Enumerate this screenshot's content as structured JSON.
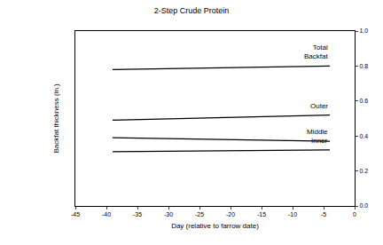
{
  "chart_data": {
    "type": "line",
    "title": "2-Step Crude Protein",
    "x_label": "Day (relative to farrow date)",
    "y_label": "Backfat thickness (in.)",
    "series": [
      {
        "name": "Total Backfat",
        "color": "#000000",
        "x": [
          -39,
          -4
        ],
        "values": [
          0.78,
          0.8
        ]
      },
      {
        "name": "Outer",
        "color": "#000000",
        "x": [
          -39,
          -4
        ],
        "values": [
          0.49,
          0.52
        ]
      },
      {
        "name": "Middle",
        "color": "#000000",
        "x": [
          -39,
          -4
        ],
        "values": [
          0.39,
          0.37
        ]
      },
      {
        "name": "Inner",
        "color": "#000000",
        "x": [
          -39,
          -4
        ],
        "values": [
          0.31,
          0.32
        ]
      }
    ],
    "xlim": [
      -45,
      0
    ],
    "xticks": [
      -45,
      -40,
      -35,
      -30,
      -25,
      -20,
      -15,
      -10,
      -5,
      0
    ],
    "ylim": [
      0,
      1
    ],
    "yticks": [
      {
        "value": 0,
        "label": "0.0"
      },
      0.2,
      0.4,
      0.6,
      0.8,
      {
        "value": 1,
        "label": "1.0"
      }
    ],
    "grid": false
  }
}
